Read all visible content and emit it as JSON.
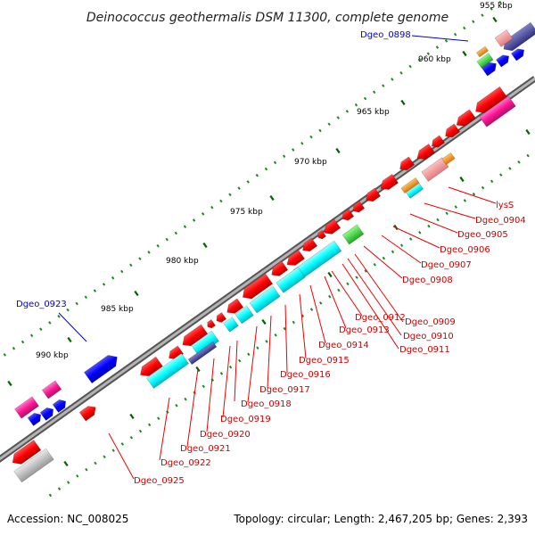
{
  "title": "Deinococcus geothermalis DSM 11300, complete genome",
  "footer": {
    "accession": "Accession: NC_008025",
    "topology": "Topology: circular; Length: 2,467,205 bp; Genes: 2,393"
  },
  "ticks": [
    "955 kbp",
    "960 kbp",
    "965 kbp",
    "970 kbp",
    "975 kbp",
    "980 kbp",
    "985 kbp",
    "990 kbp"
  ],
  "genes_red": [
    "lysS",
    "Dgeo_0904",
    "Dgeo_0905",
    "Dgeo_0906",
    "Dgeo_0907",
    "Dgeo_0908",
    "Dgeo_0909",
    "Dgeo_0910",
    "Dgeo_0911",
    "Dgeo_0912",
    "Dgeo_0913",
    "Dgeo_0914",
    "Dgeo_0915",
    "Dgeo_0916",
    "Dgeo_0917",
    "Dgeo_0918",
    "Dgeo_0919",
    "Dgeo_0920",
    "Dgeo_0921",
    "Dgeo_0922",
    "Dgeo_0925"
  ],
  "genes_blue": [
    "Dgeo_0898",
    "Dgeo_0923"
  ],
  "colors": {
    "backbone": "#808080",
    "cds_red": "#ff0000",
    "cds_blue": "#0000ff",
    "cds_cyan": "#00ffff",
    "tick": "#007700",
    "label_red": "#cc0000",
    "label_blue": "#0000cc"
  }
}
